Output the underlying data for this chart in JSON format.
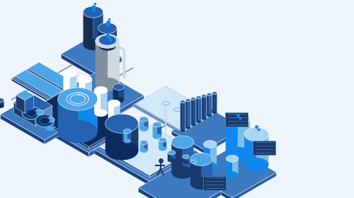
{
  "bg_color": "#eef4fb",
  "dark_blue": "#1a3a6b",
  "mid_blue": "#2563b0",
  "light_blue": "#4da6e8",
  "pale_blue": "#a8d4f5",
  "very_light_blue": "#d0e8f8",
  "steel_blue": "#5b8db8",
  "navy": "#0d2b5e",
  "platform_dark": "#1e3f7a",
  "platform_mid": "#2e5fa0",
  "platform_light": "#3d7abf",
  "pipe_color": "#6ab0d8",
  "white": "#ffffff",
  "light_gray": "#c8dae8",
  "connector_color": "#4a90c4",
  "accent_blue": "#1188ee",
  "tank_dark": "#162d55",
  "tank_mid": "#1e4a8a",
  "transparent_blue": "#7bbfe8",
  "silver": "#d0d8e0",
  "dark_silver": "#8090a0"
}
